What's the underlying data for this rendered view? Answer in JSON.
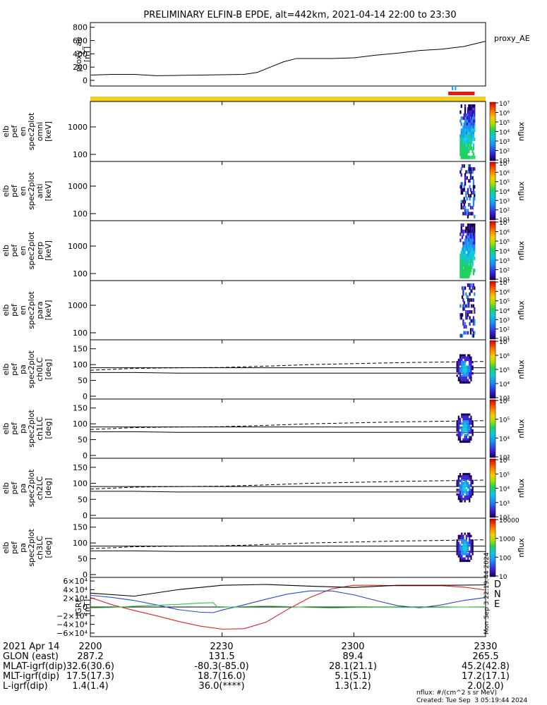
{
  "title": "PRELIMINARY ELFIN-B EPDE, alt=442km, 2021-04-14 22:00 to 23:30",
  "footer": {
    "units": "nflux: #/(cm^2 s sr MeV)",
    "created": "Created: Tue Sep  3 05:19:44 2024",
    "margin_stamp": "Mon Sep  3 22:19:44 2024"
  },
  "colors": {
    "D": "#dd2222",
    "N": "#2a46d6",
    "E": "#2cc93a",
    "ae_bar": "#f2cf1c",
    "sci_bar_blue": "#2a9ae0",
    "sci_bar_red": "#e11a1a"
  },
  "chart_data": [
    {
      "type": "line",
      "ylabel": "proxy_ae\n[nT]",
      "legend": "proxy_AE",
      "yticks": [
        "0",
        "200",
        "400",
        "600",
        "800"
      ],
      "ylim": [
        0,
        850
      ],
      "xlim": [
        0,
        90
      ],
      "series": [
        {
          "name": "proxy_AE",
          "x": [
            0,
            5,
            10,
            15,
            20,
            25,
            30,
            35,
            38,
            41,
            44,
            47,
            50,
            55,
            60,
            65,
            70,
            75,
            80,
            85,
            90
          ],
          "y": [
            80,
            90,
            90,
            70,
            75,
            80,
            85,
            90,
            120,
            200,
            280,
            330,
            330,
            330,
            340,
            380,
            410,
            450,
            470,
            510,
            590
          ]
        }
      ]
    },
    {
      "type": "heatmap",
      "ylabel": "elb\npef\nen\nspec2plot\nomni\n[keV]",
      "yticks": [
        "100",
        "1000"
      ],
      "colorbar_ticks": [
        "10¹",
        "10²",
        "10³",
        "10⁴",
        "10⁵",
        "10⁶",
        "10⁷"
      ],
      "colorbar_label": "nflux",
      "activity_window_min": [
        83,
        87
      ]
    },
    {
      "type": "heatmap",
      "ylabel": "elb\npef\nen\nspec2plot\nanti\n[keV]",
      "yticks": [
        "100",
        "1000"
      ],
      "colorbar_ticks": [
        "10¹",
        "10²",
        "10³",
        "10⁴",
        "10⁵",
        "10⁶",
        "10⁷"
      ],
      "colorbar_label": "nflux",
      "activity_window_min": [
        83,
        87
      ]
    },
    {
      "type": "heatmap",
      "ylabel": "elb\npef\nen\nspec2plot\nperp\n[keV]",
      "yticks": [
        "100",
        "1000"
      ],
      "colorbar_ticks": [
        "10¹",
        "10²",
        "10³",
        "10⁴",
        "10⁵",
        "10⁶",
        "10⁷"
      ],
      "colorbar_label": "nflux",
      "activity_window_min": [
        83,
        87
      ]
    },
    {
      "type": "heatmap",
      "ylabel": "elb\npef\nen\nspec2plot\npara\n[keV]",
      "yticks": [
        "100",
        "1000"
      ],
      "colorbar_ticks": [
        "10¹",
        "10²",
        "10³",
        "10⁴",
        "10⁵",
        "10⁶",
        "10⁷"
      ],
      "colorbar_label": "nflux",
      "activity_window_min": [
        83,
        87
      ]
    },
    {
      "type": "heatmap",
      "ylabel": "elb\npef\npa\nspec2plot\nch0LC\n[deg]",
      "yticks": [
        "0",
        "50",
        "100",
        "150"
      ],
      "colorbar_ticks": [
        "10³",
        "10⁴",
        "10⁵",
        "10⁶",
        "10⁷"
      ],
      "colorbar_label": "nflux",
      "reference_line_deg": 90,
      "lc_deg": [
        75,
        75,
        73,
        73,
        73,
        73,
        73,
        73,
        73,
        73
      ],
      "alc_deg": [
        82,
        88,
        90,
        91,
        95,
        100,
        103,
        106,
        108,
        110
      ]
    },
    {
      "type": "heatmap",
      "ylabel": "elb\npef\npa\nspec2plot\nch1LC\n[deg]",
      "yticks": [
        "0",
        "50",
        "100",
        "150"
      ],
      "colorbar_ticks": [
        "10³",
        "10⁴",
        "10⁵",
        "10⁶"
      ],
      "colorbar_label": "nflux",
      "reference_line_deg": 90,
      "lc_deg": [
        75,
        75,
        73,
        73,
        73,
        73,
        73,
        73,
        73,
        73
      ],
      "alc_deg": [
        82,
        88,
        90,
        91,
        95,
        100,
        103,
        106,
        108,
        110
      ]
    },
    {
      "type": "heatmap",
      "ylabel": "elb\npef\npa\nspec2plot\nch2LC\n[deg]",
      "yticks": [
        "0",
        "50",
        "100",
        "150"
      ],
      "colorbar_ticks": [
        "10²",
        "10³",
        "10⁴",
        "10⁵",
        "10⁶"
      ],
      "colorbar_label": "nflux",
      "reference_line_deg": 90,
      "lc_deg": [
        75,
        75,
        73,
        73,
        73,
        73,
        73,
        73,
        73,
        73
      ],
      "alc_deg": [
        82,
        88,
        90,
        91,
        95,
        100,
        103,
        106,
        108,
        110
      ]
    },
    {
      "type": "heatmap",
      "ylabel": "elb\npef\npa\nspec2plot\nch3LC\n[deg]",
      "yticks": [
        "0",
        "50",
        "100",
        "150"
      ],
      "colorbar_ticks": [
        "10",
        "100",
        "1000",
        "10000"
      ],
      "colorbar_label": "nflux",
      "reference_line_deg": 90,
      "lc_deg": [
        75,
        75,
        73,
        73,
        73,
        73,
        73,
        73,
        73,
        73
      ],
      "alc_deg": [
        82,
        88,
        90,
        91,
        95,
        100,
        103,
        106,
        108,
        110
      ]
    },
    {
      "type": "line",
      "ylabel": "IGRF\n[nT]",
      "yticks": [
        "−6×10⁴",
        "−4×10⁴",
        "−2×10⁴",
        "0",
        "2×10⁴",
        "4×10⁴",
        "6×10⁴"
      ],
      "ylim": [
        -65000,
        65000
      ],
      "xlim": [
        0,
        90
      ],
      "legend": [
        "D",
        "N",
        "E"
      ],
      "series": [
        {
          "name": "D",
          "x": [
            0,
            5,
            10,
            15,
            20,
            25,
            30,
            35,
            40,
            45,
            50,
            55,
            60,
            65,
            70,
            75,
            80,
            85,
            90
          ],
          "y": [
            22000,
            5000,
            -8000,
            -20000,
            -33000,
            -44000,
            -51000,
            -50000,
            -35000,
            -5000,
            22000,
            42000,
            50000,
            50000,
            49000,
            49000,
            49000,
            46000,
            39000
          ]
        },
        {
          "name": "N",
          "x": [
            0,
            5,
            10,
            15,
            20,
            25,
            28,
            30,
            35,
            40,
            45,
            50,
            55,
            60,
            65,
            70,
            75,
            80,
            85,
            90
          ],
          "y": [
            27000,
            22000,
            15000,
            5000,
            -6000,
            -12000,
            -13000,
            -7000,
            5000,
            18000,
            30000,
            37000,
            37000,
            28000,
            15000,
            3000,
            -2000,
            5000,
            15000,
            22000
          ]
        },
        {
          "name": "E",
          "x": [
            0,
            5,
            10,
            15,
            20,
            25,
            28,
            29,
            35,
            40,
            45,
            50,
            55,
            60,
            65,
            70,
            75,
            80,
            85,
            90
          ],
          "y": [
            -2000,
            -1000,
            2000,
            4000,
            6000,
            9000,
            10000,
            -1000,
            1000,
            2000,
            1000,
            -1000,
            -2000,
            -1000,
            -500,
            -500,
            -1000,
            -500,
            0,
            500
          ]
        },
        {
          "x": [
            0,
            10,
            20,
            30,
            40,
            50,
            60,
            70,
            80,
            90
          ],
          "y": [
            32000,
            25000,
            40000,
            50000,
            52000,
            48000,
            45000,
            50000,
            50000,
            51000
          ]
        }
      ]
    }
  ],
  "xaxis": {
    "ticks": [
      "2200",
      "2230",
      "2300",
      "2330"
    ],
    "rows": [
      {
        "label": "2021 Apr 14",
        "values": [
          "2200",
          "2230",
          "2300",
          "2330"
        ]
      },
      {
        "label": "GLON (east)",
        "values": [
          "287.2",
          "131.5",
          "89.4",
          "265.5"
        ]
      },
      {
        "label": "MLAT-igrf(dip)",
        "values": [
          "32.6(30.6)",
          "-80.3(-85.0)",
          "28.1(21.1)",
          "45.2(42.8)"
        ]
      },
      {
        "label": "MLT-igrf(dip)",
        "values": [
          "17.5(17.3)",
          "18.7(16.0)",
          "5.1(5.1)",
          "17.2(17.1)"
        ]
      },
      {
        "label": "L-igrf(dip)",
        "values": [
          "1.4(1.4)",
          "36.0(****)",
          "1.3(1.2)",
          "2.0(2.0)"
        ]
      }
    ]
  }
}
